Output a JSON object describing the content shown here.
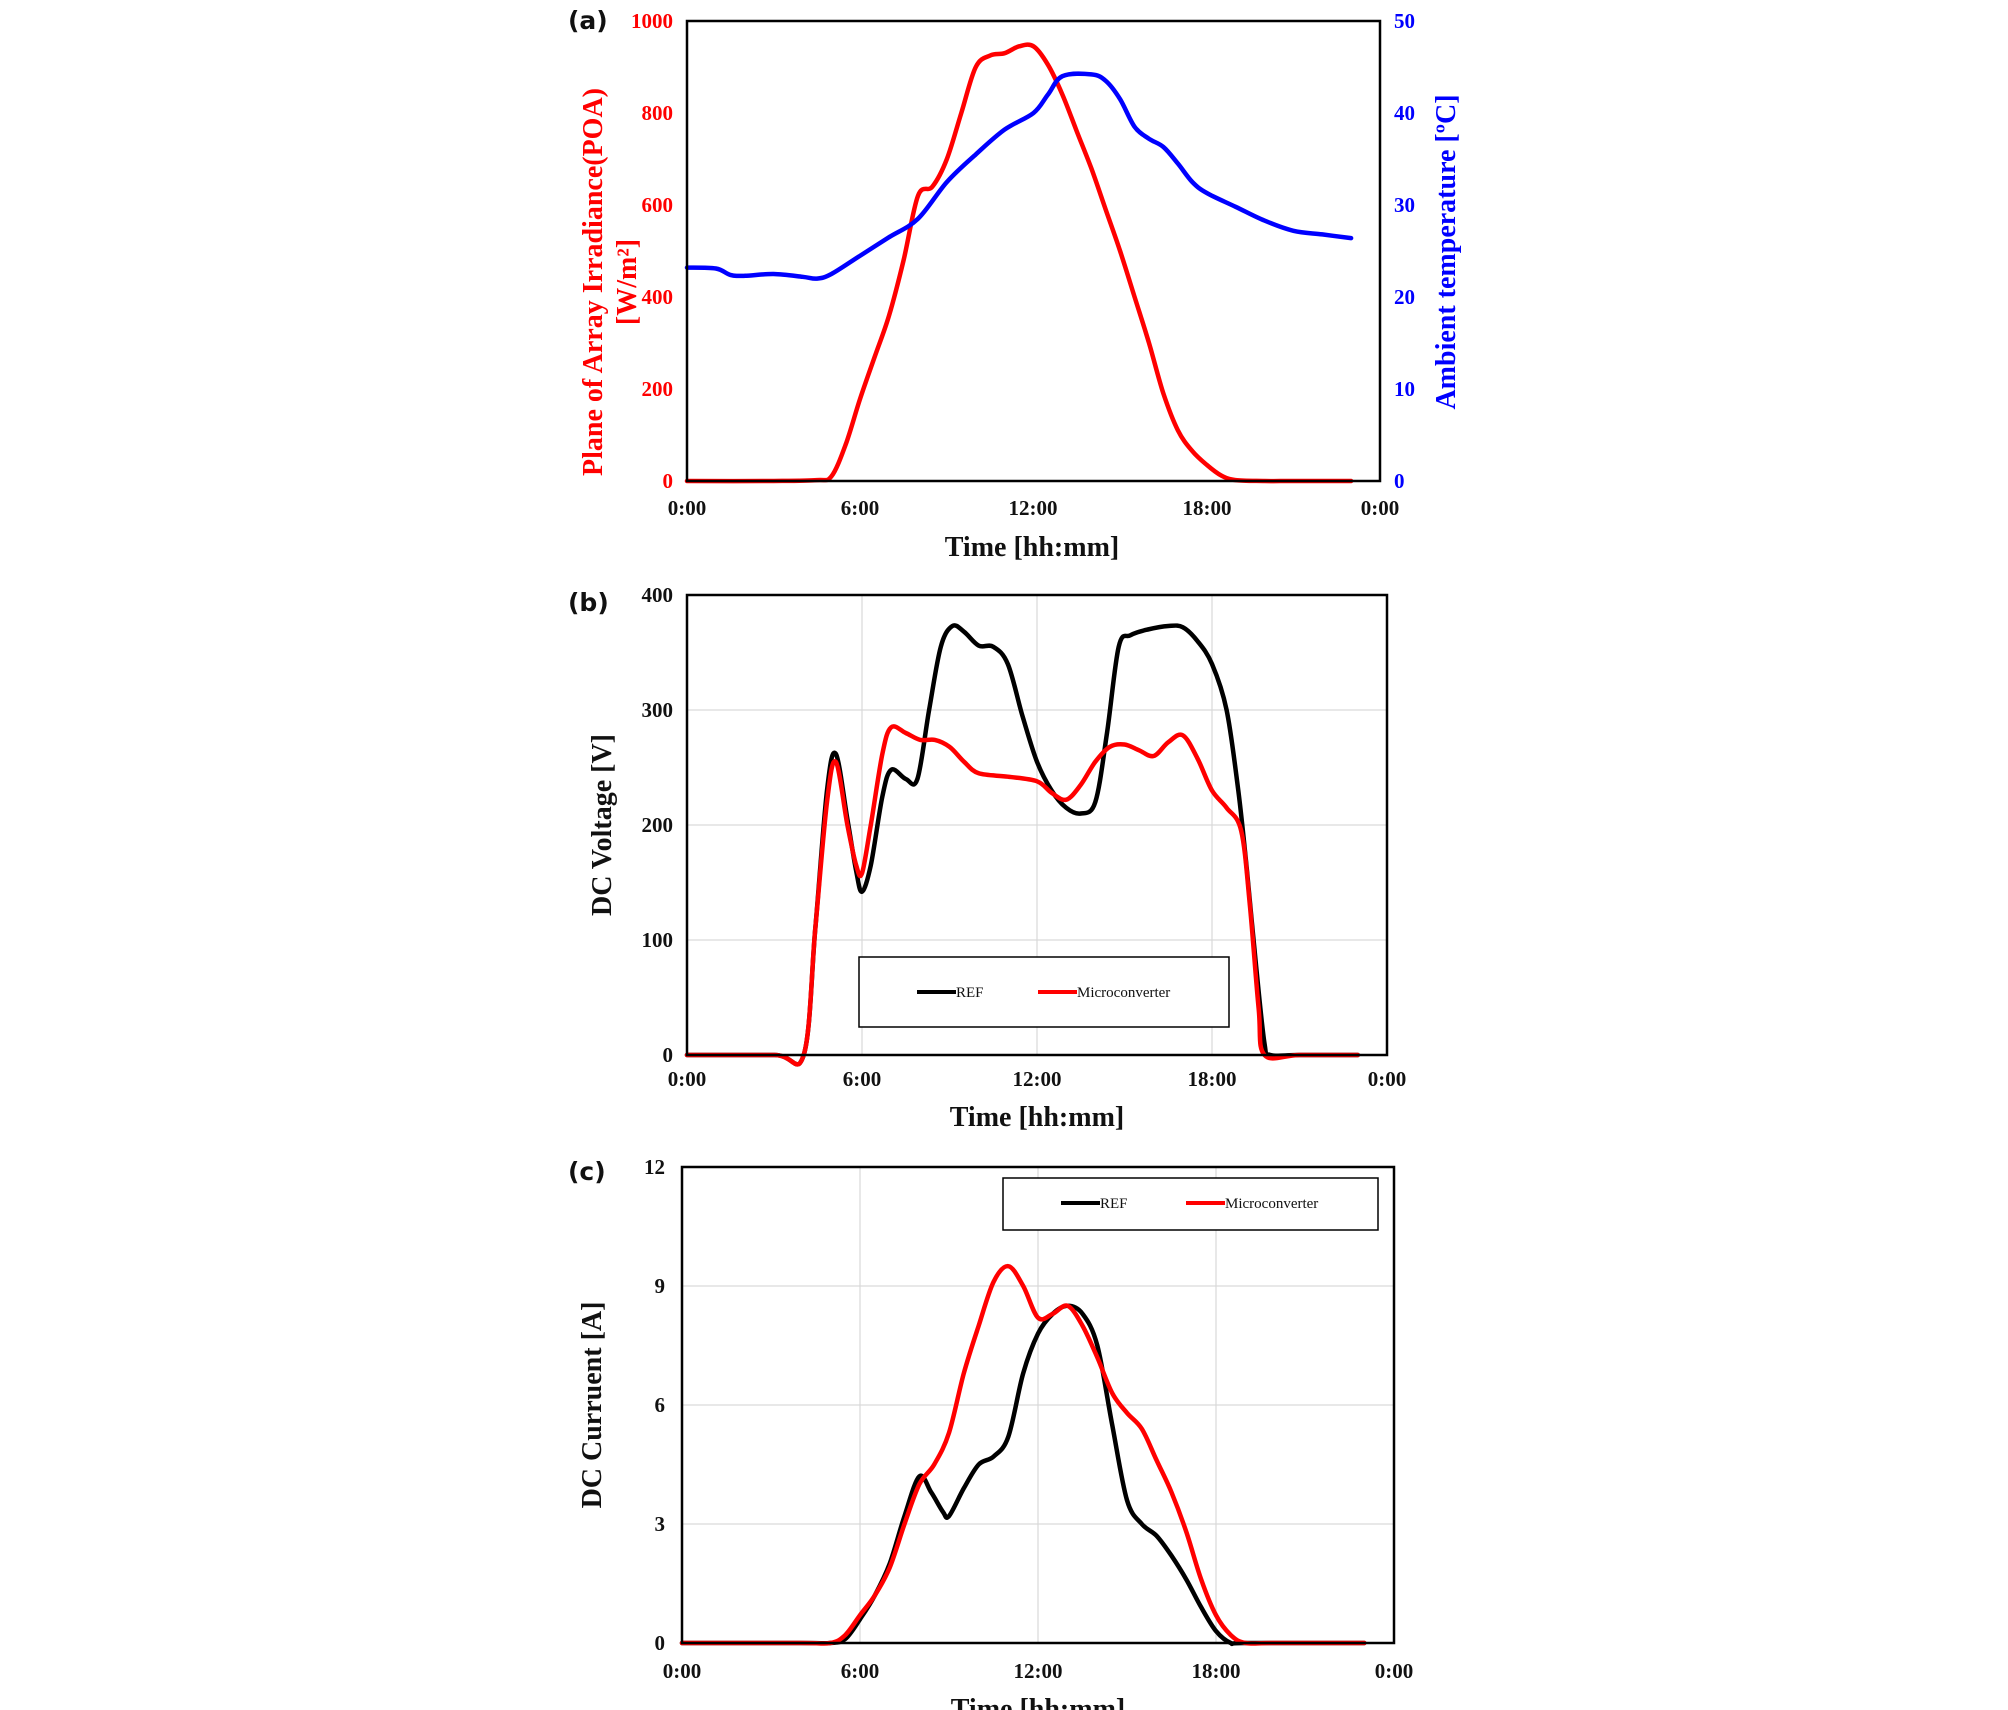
{
  "chart_data": [
    {
      "panel_label": "(a)",
      "type": "line",
      "xlabel": "Time [hh:mm]",
      "xlim": [
        0,
        24
      ],
      "xticks": [
        "0:00",
        "6:00",
        "12:00",
        "18:00",
        "0:00"
      ],
      "ylabel_left_line1": "Plane of Array Irradiance(POA)",
      "ylabel_left_line2": "[W/m²]",
      "ylim_left": [
        0,
        1000
      ],
      "yticks_left": [
        "0",
        "200",
        "400",
        "600",
        "800",
        "1000"
      ],
      "ylabel_right": "Ambient temperature [ºC]",
      "ylim_right": [
        0,
        50
      ],
      "yticks_right": [
        "0",
        "10",
        "20",
        "30",
        "40",
        "50"
      ],
      "grid": false,
      "series": [
        {
          "axis": "left",
          "color": "#ff0000",
          "points": [
            [
              0,
              0
            ],
            [
              3,
              0
            ],
            [
              4.5,
              2
            ],
            [
              5,
              10
            ],
            [
              5.5,
              80
            ],
            [
              6,
              180
            ],
            [
              6.5,
              270
            ],
            [
              7,
              360
            ],
            [
              7.5,
              480
            ],
            [
              8,
              620
            ],
            [
              8.5,
              640
            ],
            [
              9,
              700
            ],
            [
              9.5,
              800
            ],
            [
              10,
              900
            ],
            [
              10.5,
              925
            ],
            [
              11,
              930
            ],
            [
              11.5,
              945
            ],
            [
              12,
              945
            ],
            [
              12.5,
              905
            ],
            [
              13,
              840
            ],
            [
              13.5,
              760
            ],
            [
              14,
              680
            ],
            [
              14.5,
              590
            ],
            [
              15,
              500
            ],
            [
              15.5,
              400
            ],
            [
              16,
              300
            ],
            [
              16.5,
              190
            ],
            [
              17,
              110
            ],
            [
              17.5,
              65
            ],
            [
              18,
              35
            ],
            [
              18.5,
              12
            ],
            [
              19,
              2
            ],
            [
              20,
              0
            ],
            [
              21,
              0
            ],
            [
              23,
              0
            ]
          ]
        },
        {
          "axis": "right",
          "color": "#0000ff",
          "points": [
            [
              0,
              23.2
            ],
            [
              1,
              23.1
            ],
            [
              1.5,
              22.4
            ],
            [
              2,
              22.3
            ],
            [
              3,
              22.5
            ],
            [
              4,
              22.2
            ],
            [
              4.5,
              22.0
            ],
            [
              5,
              22.5
            ],
            [
              6,
              24.5
            ],
            [
              7,
              26.5
            ],
            [
              8,
              28.5
            ],
            [
              9,
              32.5
            ],
            [
              10,
              35.5
            ],
            [
              11,
              38.2
            ],
            [
              12,
              40.0
            ],
            [
              12.5,
              42.0
            ],
            [
              13,
              44.0
            ],
            [
              14,
              44.2
            ],
            [
              14.5,
              43.5
            ],
            [
              15,
              41.5
            ],
            [
              15.5,
              38.5
            ],
            [
              16,
              37.2
            ],
            [
              16.5,
              36.3
            ],
            [
              17,
              34.5
            ],
            [
              17.5,
              32.5
            ],
            [
              18,
              31.3
            ],
            [
              19,
              29.8
            ],
            [
              20,
              28.3
            ],
            [
              21,
              27.2
            ],
            [
              22,
              26.8
            ],
            [
              23,
              26.4
            ]
          ]
        }
      ]
    },
    {
      "panel_label": "(b)",
      "type": "line",
      "xlabel": "Time [hh:mm]",
      "xlim": [
        0,
        24
      ],
      "xticks": [
        "0:00",
        "6:00",
        "12:00",
        "18:00",
        "0:00"
      ],
      "ylabel": "DC Voltage [V]",
      "ylim": [
        0,
        400
      ],
      "yticks": [
        "0",
        "100",
        "200",
        "300",
        "400"
      ],
      "grid": true,
      "legend": {
        "placement": "lower-center",
        "entries": [
          {
            "name": "REF",
            "color": "#000000"
          },
          {
            "name": "Microconverter",
            "color": "#ff0000"
          }
        ]
      },
      "series": [
        {
          "name": "REF",
          "color": "#000000",
          "points": [
            [
              0,
              0
            ],
            [
              3,
              0
            ],
            [
              4,
              0
            ],
            [
              4.4,
              110
            ],
            [
              4.8,
              230
            ],
            [
              5.1,
              262
            ],
            [
              5.5,
              205
            ],
            [
              5.8,
              160
            ],
            [
              6.0,
              142
            ],
            [
              6.3,
              165
            ],
            [
              6.7,
              225
            ],
            [
              7,
              248
            ],
            [
              7.5,
              240
            ],
            [
              7.9,
              240
            ],
            [
              8.3,
              300
            ],
            [
              8.7,
              355
            ],
            [
              9.1,
              373
            ],
            [
              9.5,
              368
            ],
            [
              10,
              356
            ],
            [
              10.5,
              355
            ],
            [
              11,
              340
            ],
            [
              11.5,
              295
            ],
            [
              12,
              255
            ],
            [
              12.5,
              230
            ],
            [
              13,
              215
            ],
            [
              13.5,
              210
            ],
            [
              14,
              220
            ],
            [
              14.4,
              280
            ],
            [
              14.8,
              355
            ],
            [
              15.2,
              365
            ],
            [
              15.8,
              370
            ],
            [
              16.5,
              373
            ],
            [
              17,
              372
            ],
            [
              17.5,
              360
            ],
            [
              18,
              340
            ],
            [
              18.5,
              300
            ],
            [
              18.9,
              230
            ],
            [
              19.2,
              160
            ],
            [
              19.5,
              80
            ],
            [
              19.8,
              10
            ],
            [
              20,
              0
            ],
            [
              21,
              0
            ],
            [
              23,
              0
            ]
          ]
        },
        {
          "name": "Microconverter",
          "color": "#ff0000",
          "points": [
            [
              0,
              0
            ],
            [
              3,
              0
            ],
            [
              4,
              0
            ],
            [
              4.4,
              110
            ],
            [
              4.8,
              220
            ],
            [
              5.1,
              255
            ],
            [
              5.5,
              200
            ],
            [
              5.8,
              165
            ],
            [
              6.0,
              158
            ],
            [
              6.3,
              200
            ],
            [
              6.7,
              262
            ],
            [
              7,
              285
            ],
            [
              7.5,
              280
            ],
            [
              8,
              274
            ],
            [
              8.5,
              274
            ],
            [
              9,
              268
            ],
            [
              9.5,
              255
            ],
            [
              10,
              245
            ],
            [
              11,
              242
            ],
            [
              12,
              238
            ],
            [
              12.5,
              228
            ],
            [
              13,
              222
            ],
            [
              13.5,
              235
            ],
            [
              14,
              255
            ],
            [
              14.5,
              268
            ],
            [
              15,
              270
            ],
            [
              15.5,
              265
            ],
            [
              16,
              260
            ],
            [
              16.5,
              272
            ],
            [
              17,
              278
            ],
            [
              17.5,
              258
            ],
            [
              18,
              230
            ],
            [
              18.5,
              215
            ],
            [
              19,
              195
            ],
            [
              19.3,
              130
            ],
            [
              19.6,
              40
            ],
            [
              19.8,
              0
            ],
            [
              21,
              0
            ],
            [
              23,
              0
            ]
          ]
        }
      ]
    },
    {
      "panel_label": "(c)",
      "type": "line",
      "xlabel": "Time [hh:mm]",
      "xlim": [
        0,
        24
      ],
      "xticks": [
        "0:00",
        "6:00",
        "12:00",
        "18:00",
        "0:00"
      ],
      "ylabel": "DC Curruent [A]",
      "ylim": [
        0,
        12
      ],
      "yticks": [
        "0",
        "3",
        "6",
        "9",
        "12"
      ],
      "grid": true,
      "legend": {
        "placement": "top-right",
        "entries": [
          {
            "name": "REF",
            "color": "#000000"
          },
          {
            "name": "Microconverter",
            "color": "#ff0000"
          }
        ]
      },
      "series": [
        {
          "name": "REF",
          "color": "#000000",
          "points": [
            [
              0,
              0
            ],
            [
              4,
              0
            ],
            [
              5,
              0
            ],
            [
              5.5,
              0.1
            ],
            [
              6,
              0.6
            ],
            [
              6.5,
              1.2
            ],
            [
              7,
              2.0
            ],
            [
              7.5,
              3.2
            ],
            [
              8,
              4.2
            ],
            [
              8.4,
              3.8
            ],
            [
              8.8,
              3.3
            ],
            [
              9,
              3.2
            ],
            [
              9.5,
              3.9
            ],
            [
              10,
              4.5
            ],
            [
              10.5,
              4.7
            ],
            [
              11,
              5.2
            ],
            [
              11.5,
              6.8
            ],
            [
              12,
              7.8
            ],
            [
              12.5,
              8.3
            ],
            [
              13,
              8.5
            ],
            [
              13.5,
              8.3
            ],
            [
              14,
              7.5
            ],
            [
              14.5,
              5.5
            ],
            [
              15,
              3.6
            ],
            [
              15.5,
              3.0
            ],
            [
              16,
              2.7
            ],
            [
              16.5,
              2.2
            ],
            [
              17,
              1.6
            ],
            [
              17.5,
              0.9
            ],
            [
              18,
              0.3
            ],
            [
              18.5,
              0
            ],
            [
              19,
              0
            ],
            [
              23,
              0
            ]
          ]
        },
        {
          "name": "Microconverter",
          "color": "#ff0000",
          "points": [
            [
              0,
              0
            ],
            [
              4,
              0
            ],
            [
              5,
              0
            ],
            [
              5.5,
              0.2
            ],
            [
              6,
              0.7
            ],
            [
              6.5,
              1.2
            ],
            [
              7,
              1.9
            ],
            [
              7.5,
              3.0
            ],
            [
              8,
              4.0
            ],
            [
              8.5,
              4.5
            ],
            [
              9,
              5.3
            ],
            [
              9.5,
              6.8
            ],
            [
              10,
              8.0
            ],
            [
              10.5,
              9.1
            ],
            [
              11,
              9.5
            ],
            [
              11.5,
              9.0
            ],
            [
              12,
              8.2
            ],
            [
              12.5,
              8.3
            ],
            [
              13,
              8.5
            ],
            [
              13.5,
              8.0
            ],
            [
              14,
              7.2
            ],
            [
              14.5,
              6.3
            ],
            [
              15,
              5.8
            ],
            [
              15.5,
              5.4
            ],
            [
              16,
              4.6
            ],
            [
              16.5,
              3.8
            ],
            [
              17,
              2.8
            ],
            [
              17.5,
              1.6
            ],
            [
              18,
              0.7
            ],
            [
              18.5,
              0.2
            ],
            [
              19,
              0
            ],
            [
              20,
              0
            ],
            [
              23,
              0
            ]
          ]
        }
      ]
    }
  ]
}
